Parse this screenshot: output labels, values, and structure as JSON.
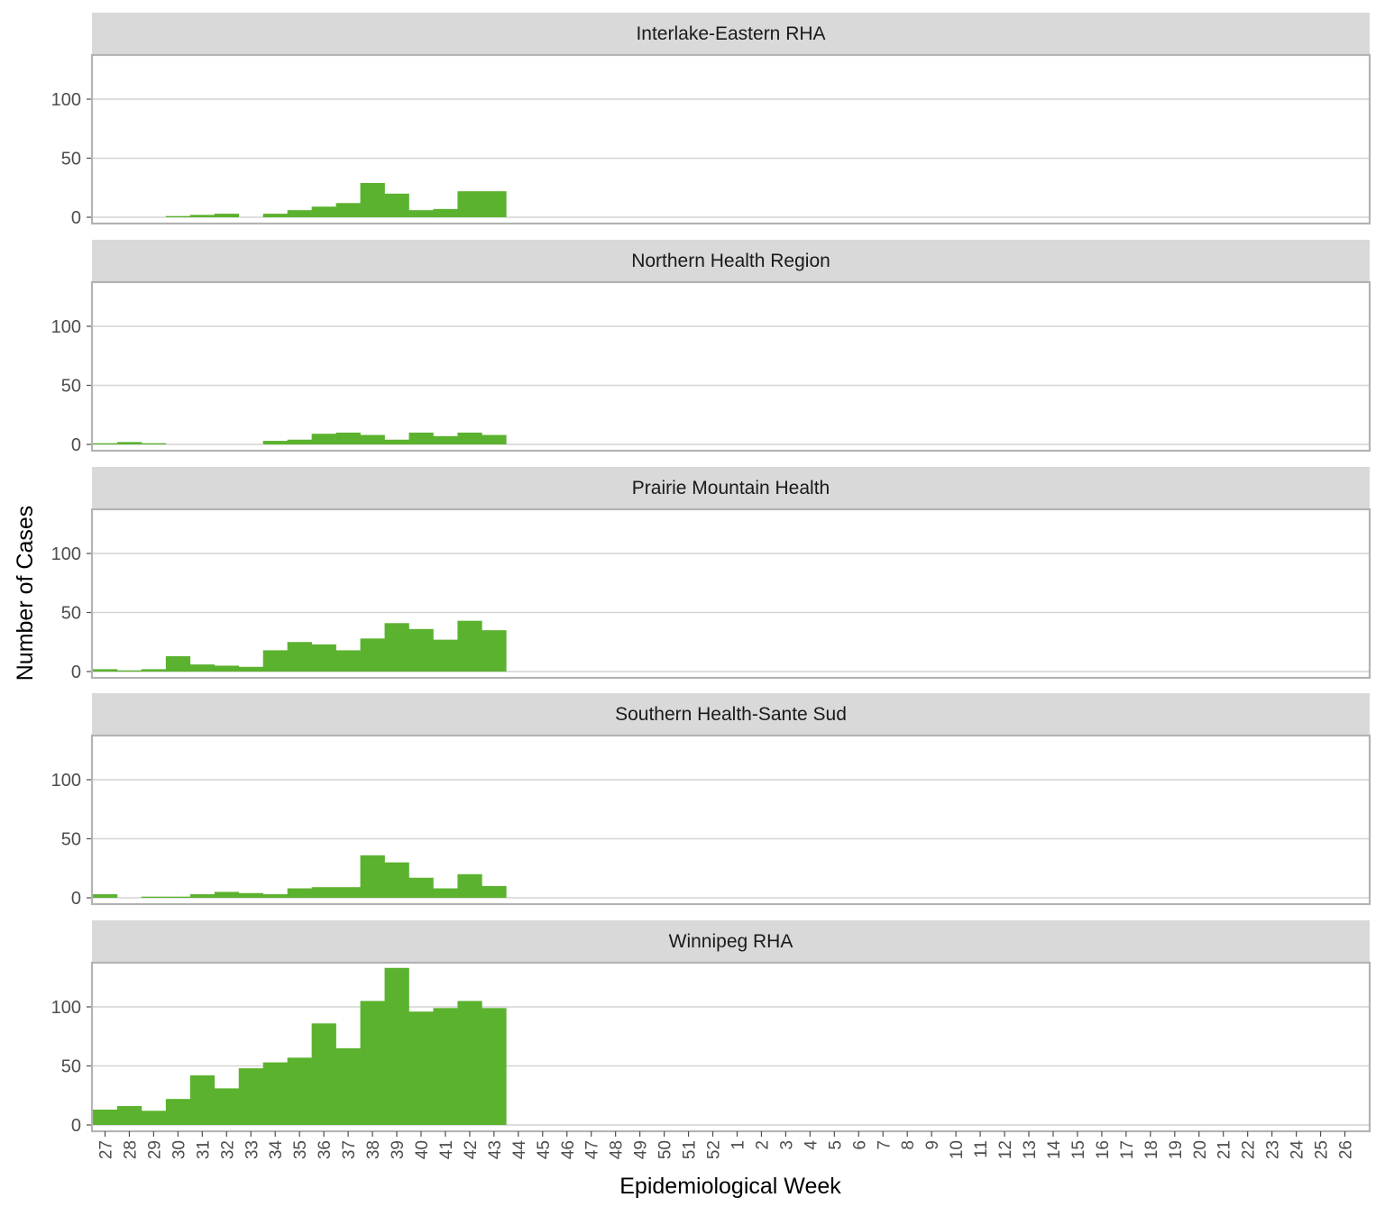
{
  "chart_data": {
    "type": "bar",
    "xlabel": "Epidemiological Week",
    "ylabel": "Number of Cases",
    "ylim": [
      0,
      140
    ],
    "yticks": [
      0,
      50,
      100
    ],
    "grid": true,
    "bar_color": "#5bb22e",
    "strip_color": "#d9d9d9",
    "categories": [
      "27",
      "28",
      "29",
      "30",
      "31",
      "32",
      "33",
      "34",
      "35",
      "36",
      "37",
      "38",
      "39",
      "40",
      "41",
      "42",
      "43",
      "44",
      "45",
      "46",
      "47",
      "48",
      "49",
      "50",
      "51",
      "52",
      "1",
      "2",
      "3",
      "4",
      "5",
      "6",
      "7",
      "8",
      "9",
      "10",
      "11",
      "12",
      "13",
      "14",
      "15",
      "16",
      "17",
      "18",
      "19",
      "20",
      "21",
      "22",
      "23",
      "24",
      "25",
      "26"
    ],
    "panels": [
      {
        "title": "Interlake-Eastern RHA",
        "values": [
          0,
          0,
          0,
          1,
          2,
          3,
          0,
          3,
          6,
          9,
          12,
          29,
          20,
          6,
          7,
          22,
          22
        ]
      },
      {
        "title": "Northern Health Region",
        "values": [
          1,
          2,
          1,
          0,
          0,
          0,
          0,
          3,
          4,
          9,
          10,
          8,
          4,
          10,
          7,
          10,
          8
        ]
      },
      {
        "title": "Prairie Mountain Health",
        "values": [
          2,
          1,
          2,
          13,
          6,
          5,
          4,
          18,
          25,
          23,
          18,
          28,
          41,
          36,
          27,
          43,
          35
        ]
      },
      {
        "title": "Southern Health-Sante Sud",
        "values": [
          3,
          0,
          1,
          1,
          3,
          5,
          4,
          3,
          8,
          9,
          9,
          36,
          30,
          17,
          8,
          20,
          10
        ]
      },
      {
        "title": "Winnipeg RHA",
        "values": [
          13,
          16,
          12,
          22,
          42,
          31,
          48,
          53,
          57,
          86,
          65,
          105,
          133,
          96,
          99,
          105,
          99
        ]
      }
    ]
  }
}
